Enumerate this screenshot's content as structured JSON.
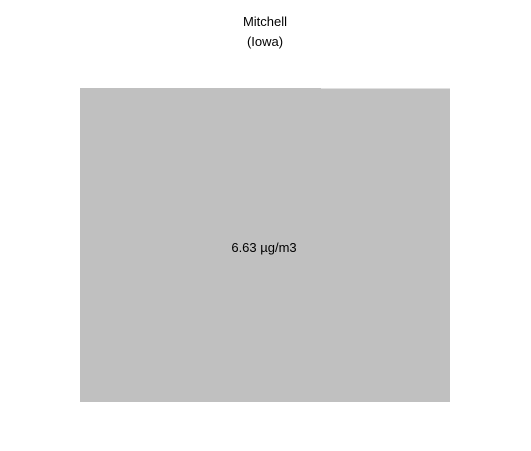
{
  "chart_data": {
    "type": "treemap",
    "title": "Mitchell",
    "subtitle": "(Iowa)",
    "series": [
      {
        "name": "",
        "values": [
          6.63
        ],
        "labels": [
          "6.63 µg/m3"
        ]
      }
    ],
    "unit": "µg/m3",
    "colors": {
      "tile": "#c0c0c0",
      "text": "#000000",
      "background": "#ffffff"
    }
  }
}
